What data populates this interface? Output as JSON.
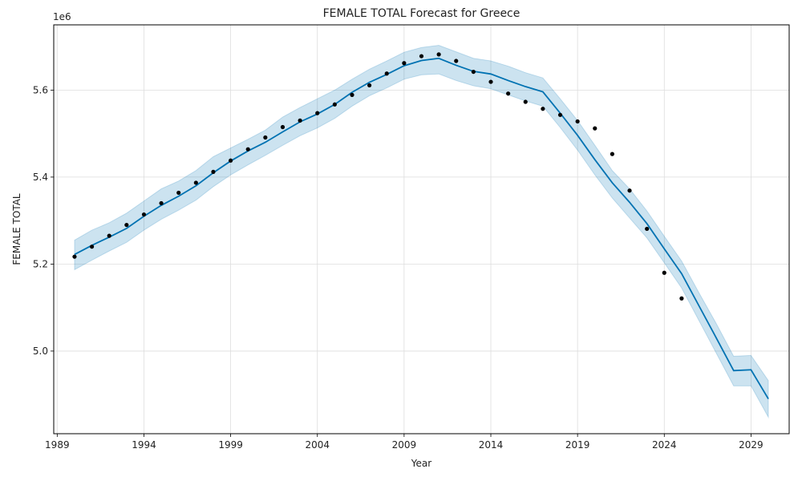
{
  "chart_data": {
    "type": "line",
    "title": "FEMALE TOTAL Forecast for Greece",
    "xlabel": "Year",
    "ylabel": "FEMALE TOTAL",
    "y_offset_label": "1e6",
    "xlim": [
      1988.8,
      2031.2
    ],
    "ylim": [
      4810000,
      5750000
    ],
    "grid": true,
    "x_ticks": [
      1989,
      1994,
      1999,
      2004,
      2009,
      2014,
      2019,
      2024,
      2029
    ],
    "y_ticks": [
      5.0,
      5.2,
      5.4,
      5.6
    ],
    "colors": {
      "line": "#0072B2",
      "band": "#0072B2",
      "points": "#000000",
      "grid": "#dddddd"
    },
    "series": [
      {
        "kind": "forecast",
        "x": [
          1990,
          1991,
          1992,
          1993,
          1994,
          1995,
          1996,
          1997,
          1998,
          1999,
          2000,
          2001,
          2002,
          2003,
          2004,
          2005,
          2006,
          2007,
          2008,
          2009,
          2010,
          2011,
          2012,
          2013,
          2014,
          2015,
          2016,
          2017,
          2018,
          2019,
          2020,
          2021,
          2022,
          2023,
          2024,
          2025,
          2026,
          2027,
          2028,
          2029,
          2030
        ],
        "y": [
          5222000,
          5243000,
          5262000,
          5282000,
          5310000,
          5335000,
          5356000,
          5380000,
          5410000,
          5437000,
          5460000,
          5480000,
          5504000,
          5527000,
          5545000,
          5567000,
          5595000,
          5618000,
          5636000,
          5656000,
          5668000,
          5673000,
          5657000,
          5643000,
          5637000,
          5622000,
          5608000,
          5596000,
          5547000,
          5496000,
          5440000,
          5387000,
          5342000,
          5293000,
          5235000,
          5178000,
          5104000,
          5030000,
          4955000,
          4957000,
          4890000
        ]
      },
      {
        "kind": "uncertainty",
        "x": [
          1990,
          1991,
          1992,
          1993,
          1994,
          1995,
          1996,
          1997,
          1998,
          1999,
          2000,
          2001,
          2002,
          2003,
          2004,
          2005,
          2006,
          2007,
          2008,
          2009,
          2010,
          2011,
          2012,
          2013,
          2014,
          2015,
          2016,
          2017,
          2018,
          2019,
          2020,
          2021,
          2022,
          2023,
          2024,
          2025,
          2026,
          2027,
          2028,
          2029,
          2030
        ],
        "upper": [
          5255000,
          5278000,
          5295000,
          5317000,
          5345000,
          5373000,
          5391000,
          5415000,
          5447000,
          5467000,
          5487000,
          5508000,
          5538000,
          5560000,
          5580000,
          5600000,
          5625000,
          5648000,
          5667000,
          5687000,
          5698000,
          5703000,
          5688000,
          5673000,
          5667000,
          5655000,
          5640000,
          5628000,
          5580000,
          5530000,
          5473000,
          5415000,
          5373000,
          5322000,
          5264000,
          5207000,
          5134000,
          5063000,
          4988000,
          4990000,
          4932000
        ],
        "lower": [
          5187000,
          5209000,
          5230000,
          5250000,
          5278000,
          5303000,
          5324000,
          5347000,
          5378000,
          5405000,
          5428000,
          5450000,
          5473000,
          5495000,
          5513000,
          5535000,
          5563000,
          5587000,
          5605000,
          5625000,
          5635000,
          5637000,
          5622000,
          5610000,
          5603000,
          5589000,
          5575000,
          5563000,
          5514000,
          5462000,
          5405000,
          5352000,
          5306000,
          5260000,
          5203000,
          5145000,
          5070000,
          4995000,
          4920000,
          4920000,
          4848000
        ]
      },
      {
        "kind": "observed",
        "x": [
          1990,
          1991,
          1992,
          1993,
          1994,
          1995,
          1996,
          1997,
          1998,
          1999,
          2000,
          2001,
          2002,
          2003,
          2004,
          2005,
          2006,
          2007,
          2008,
          2009,
          2010,
          2011,
          2012,
          2013,
          2014,
          2015,
          2016,
          2017,
          2018,
          2019,
          2020,
          2021,
          2022,
          2023,
          2024,
          2025
        ],
        "y": [
          5217000,
          5240000,
          5265000,
          5290000,
          5314000,
          5340000,
          5364000,
          5387000,
          5412000,
          5438000,
          5464000,
          5491000,
          5515000,
          5530000,
          5547000,
          5567000,
          5589000,
          5611000,
          5638000,
          5662000,
          5678000,
          5682000,
          5667000,
          5642000,
          5619000,
          5592000,
          5573000,
          5557000,
          5543000,
          5528000,
          5512000,
          5453000,
          5369000,
          5281000,
          5180000,
          5121000
        ]
      }
    ]
  }
}
